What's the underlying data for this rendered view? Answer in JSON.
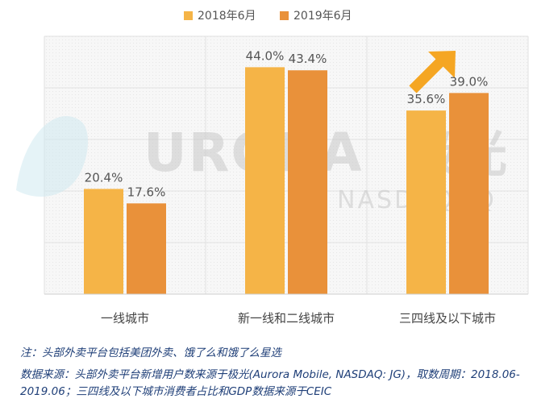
{
  "chart_data": {
    "type": "bar",
    "categories": [
      "一线城市",
      "新一线和二线城市",
      "三四线及以下城市"
    ],
    "series": [
      {
        "name": "2018年6月",
        "values": [
          20.4,
          44.0,
          35.6
        ],
        "labels": [
          "20.4%",
          "44.0%",
          "35.6%"
        ],
        "color": "#f5b447"
      },
      {
        "name": "2019年6月",
        "values": [
          17.6,
          43.4,
          39.0
        ],
        "labels": [
          "17.6%",
          "43.4%",
          "39.0%"
        ],
        "color": "#e9913a"
      }
    ],
    "ylim": [
      0,
      50
    ],
    "grid": true,
    "legend_position": "top-center",
    "title": "",
    "xlabel": "",
    "ylabel": ""
  },
  "watermark": {
    "brand": "URORA",
    "brand_cn": "极光",
    "sub": "NASDAQ:JQ"
  },
  "arrow_color": "#f5a623",
  "notes": {
    "line1": "注：头部外卖平台包括美团外卖、饿了么和饿了么星选",
    "line2": "数据来源：头部外卖平台新增用户数来源于极光(Aurora Mobile, NASDAQ: JG)，取数周期：2018.06-2019.06；三四线及以下城市消费者占比和GDP数据来源于CEIC"
  }
}
